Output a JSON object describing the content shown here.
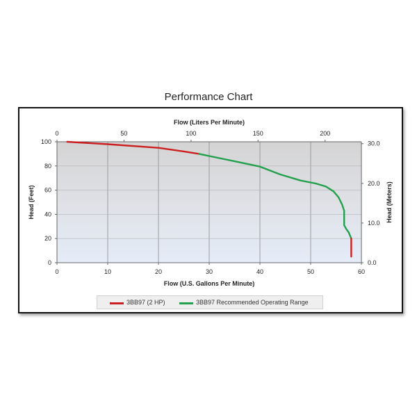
{
  "page": {
    "title": "Performance Chart"
  },
  "chart_data": {
    "type": "line",
    "title": "Performance Chart",
    "xlabel": "Flow (U.S. Gallons Per Minute)",
    "ylabel": "Head (Feet)",
    "x2label": "Flow (Liters Per Minute)",
    "y2label": "Head (Meters)",
    "xlim": [
      0,
      60
    ],
    "ylim": [
      0,
      100
    ],
    "x2lim": [
      0,
      227.1
    ],
    "y2lim": [
      0,
      30.48
    ],
    "x_ticks": [
      "0",
      "10",
      "20",
      "30",
      "40",
      "50",
      "60"
    ],
    "y_ticks": [
      "0",
      "20",
      "40",
      "60",
      "80",
      "100"
    ],
    "x2_ticks": [
      "0",
      "50",
      "100",
      "150",
      "200"
    ],
    "y2_ticks": [
      "0.0",
      "10.0",
      "20.0",
      "30.0"
    ],
    "grid": true,
    "legend_position": "bottom",
    "series": [
      {
        "name": "3BB97 (2 HP)",
        "color": "#cc1f1f",
        "x": [
          2,
          10,
          20,
          25,
          28
        ],
        "y": [
          100,
          98,
          95,
          92,
          90
        ]
      },
      {
        "name": "3BB97 Recommended Operating Range",
        "color": "#22a04b",
        "x": [
          28,
          32,
          36,
          40,
          44,
          48,
          51,
          53,
          54.5,
          55.5,
          56.2,
          56.6,
          56.6,
          57,
          57.5,
          58
        ],
        "y": [
          90,
          86.5,
          83,
          79.5,
          73,
          68,
          65.5,
          63,
          59,
          54,
          48,
          43,
          31,
          28,
          25,
          20
        ]
      },
      {
        "name": "",
        "color": "#cc1f1f",
        "x": [
          58,
          58
        ],
        "y": [
          20,
          5
        ]
      }
    ]
  },
  "legend": {
    "item1": "3BB97 (2 HP)",
    "item2": "3BB97 Recommended Operating Range"
  }
}
